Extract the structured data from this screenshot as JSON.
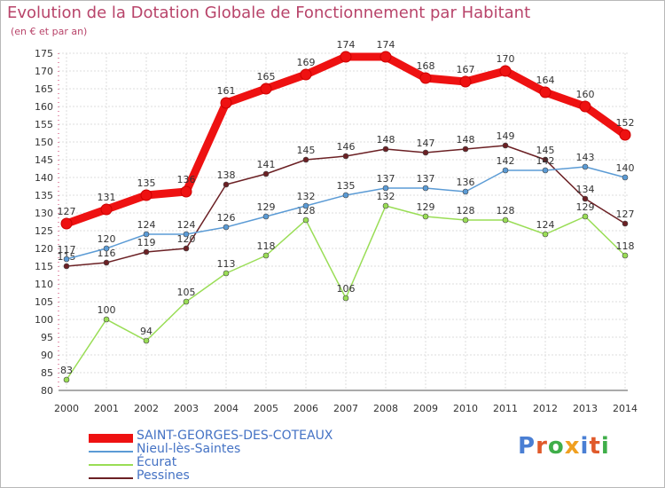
{
  "chart_data": {
    "type": "line",
    "title": "Evolution de la Dotation Globale de Fonctionnement par Habitant",
    "subtitle": "(en € et par an)",
    "xlabel": "",
    "ylabel": "",
    "x": [
      "2000",
      "2001",
      "2002",
      "2003",
      "2004",
      "2005",
      "2006",
      "2007",
      "2008",
      "2009",
      "2010",
      "2011",
      "2012",
      "2013",
      "2014"
    ],
    "ylim": [
      80,
      175
    ],
    "yticks": [
      80,
      85,
      90,
      95,
      100,
      105,
      110,
      115,
      120,
      125,
      130,
      135,
      140,
      145,
      150,
      155,
      160,
      165,
      170,
      175
    ],
    "grid": true,
    "legend_position": "bottom-left",
    "series": [
      {
        "name": "SAINT-GEORGES-DES-COTEAUX",
        "color": "#ee1111",
        "label_color": "#333333",
        "values": [
          127,
          131,
          135,
          136,
          161,
          165,
          169,
          174,
          174,
          168,
          167,
          170,
          164,
          160,
          152
        ]
      },
      {
        "name": "Nieul-lès-Saintes",
        "color": "#5b9bd5",
        "label_color": "#333333",
        "values": [
          117,
          120,
          124,
          124,
          126,
          129,
          132,
          135,
          137,
          137,
          136,
          142,
          142,
          143,
          140
        ]
      },
      {
        "name": "Écurat",
        "color": "#99dd55",
        "label_color": "#333333",
        "values": [
          83,
          100,
          94,
          105,
          113,
          118,
          128,
          106,
          132,
          129,
          128,
          128,
          124,
          129,
          118
        ]
      },
      {
        "name": "Pessines",
        "color": "#6b2024",
        "label_color": "#333333",
        "values": [
          115,
          116,
          119,
          120,
          138,
          141,
          145,
          146,
          148,
          147,
          148,
          149,
          145,
          134,
          127
        ]
      }
    ]
  },
  "logo": {
    "letters": [
      "P",
      "r",
      "o",
      "x",
      "i",
      "t",
      "i"
    ],
    "colors": [
      "#4a7fd4",
      "#e05a2b",
      "#3fae49",
      "#f0a020",
      "#4a7fd4",
      "#e05a2b",
      "#3fae49"
    ]
  }
}
